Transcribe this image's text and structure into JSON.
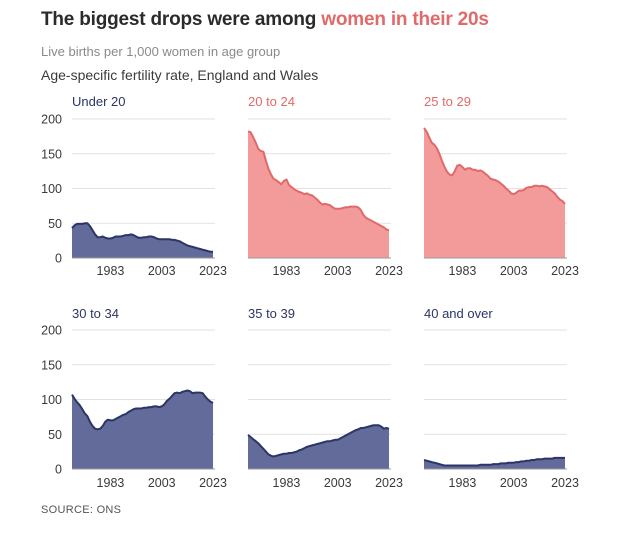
{
  "header": {
    "title_prefix": "The biggest drops were among ",
    "title_highlight": "women in their 20s",
    "subtitle": "Live births per 1,000 women in age group",
    "caption": "Age-specific fertility rate, England and Wales"
  },
  "source": "SOURCE: ONS",
  "colors": {
    "navy": "#2b3566",
    "navy_fill": "#626b99",
    "red": "#e06a6a",
    "red_fill": "#f39a9a",
    "grid": "#e2e2e2",
    "axis_text": "#3a3a3a"
  },
  "chart_data": {
    "type": "area",
    "layout": "small-multiples",
    "x_range": [
      1968,
      2023
    ],
    "x_ticks": [
      1983,
      2003,
      2023
    ],
    "x_tick_labels": [
      "1983",
      "2003",
      "2023"
    ],
    "ylim": [
      0,
      200
    ],
    "y_ticks": [
      0,
      50,
      100,
      150,
      200
    ],
    "y_tick_labels": [
      "0",
      "50",
      "100",
      "150",
      "200"
    ],
    "grid": true,
    "panels": [
      {
        "name": "Under 20",
        "color": "navy",
        "x": [
          1968,
          1969,
          1970,
          1971,
          1972,
          1973,
          1974,
          1975,
          1976,
          1977,
          1978,
          1979,
          1980,
          1981,
          1982,
          1983,
          1984,
          1985,
          1986,
          1987,
          1988,
          1989,
          1990,
          1991,
          1992,
          1993,
          1994,
          1995,
          1996,
          1997,
          1998,
          1999,
          2000,
          2001,
          2002,
          2003,
          2004,
          2005,
          2006,
          2007,
          2008,
          2009,
          2010,
          2011,
          2012,
          2013,
          2014,
          2015,
          2016,
          2017,
          2018,
          2019,
          2020,
          2021,
          2022,
          2023
        ],
        "values": [
          43,
          47,
          49,
          49,
          49,
          50,
          50,
          46,
          40,
          34,
          30,
          30,
          31,
          29,
          28,
          28,
          29,
          31,
          31,
          31,
          32,
          33,
          33,
          34,
          33,
          31,
          29,
          29,
          30,
          30,
          31,
          31,
          30,
          28,
          27,
          27,
          27,
          27,
          27,
          26,
          26,
          25,
          24,
          22,
          20,
          18,
          17,
          16,
          15,
          14,
          13,
          12,
          11,
          10,
          9,
          9
        ]
      },
      {
        "name": "20 to 24",
        "color": "red",
        "x": [
          1968,
          1969,
          1970,
          1971,
          1972,
          1973,
          1974,
          1975,
          1976,
          1977,
          1978,
          1979,
          1980,
          1981,
          1982,
          1983,
          1984,
          1985,
          1986,
          1987,
          1988,
          1989,
          1990,
          1991,
          1992,
          1993,
          1994,
          1995,
          1996,
          1997,
          1998,
          1999,
          2000,
          2001,
          2002,
          2003,
          2004,
          2005,
          2006,
          2007,
          2008,
          2009,
          2010,
          2011,
          2012,
          2013,
          2014,
          2015,
          2016,
          2017,
          2018,
          2019,
          2020,
          2021,
          2022,
          2023
        ],
        "values": [
          182,
          181,
          174,
          166,
          157,
          154,
          153,
          140,
          128,
          120,
          114,
          112,
          109,
          106,
          111,
          113,
          105,
          102,
          99,
          97,
          95,
          94,
          92,
          93,
          91,
          90,
          87,
          84,
          80,
          77,
          78,
          77,
          76,
          73,
          71,
          71,
          71,
          72,
          73,
          73,
          74,
          74,
          74,
          73,
          69,
          62,
          58,
          56,
          54,
          52,
          50,
          48,
          46,
          44,
          41,
          40
        ]
      },
      {
        "name": "25 to 29",
        "color": "red",
        "x": [
          1968,
          1969,
          1970,
          1971,
          1972,
          1973,
          1974,
          1975,
          1976,
          1977,
          1978,
          1979,
          1980,
          1981,
          1982,
          1983,
          1984,
          1985,
          1986,
          1987,
          1988,
          1989,
          1990,
          1991,
          1992,
          1993,
          1994,
          1995,
          1996,
          1997,
          1998,
          1999,
          2000,
          2001,
          2002,
          2003,
          2004,
          2005,
          2006,
          2007,
          2008,
          2009,
          2010,
          2011,
          2012,
          2013,
          2014,
          2015,
          2016,
          2017,
          2018,
          2019,
          2020,
          2021,
          2022,
          2023
        ],
        "values": [
          187,
          182,
          174,
          166,
          163,
          158,
          150,
          140,
          131,
          124,
          120,
          119,
          125,
          133,
          134,
          131,
          127,
          129,
          129,
          127,
          127,
          125,
          126,
          124,
          121,
          118,
          114,
          113,
          112,
          110,
          107,
          104,
          100,
          97,
          93,
          92,
          94,
          97,
          97,
          98,
          101,
          102,
          102,
          104,
          104,
          103,
          104,
          103,
          102,
          99,
          96,
          93,
          88,
          84,
          82,
          78
        ]
      },
      {
        "name": "30 to 34",
        "color": "navy",
        "x": [
          1968,
          1969,
          1970,
          1971,
          1972,
          1973,
          1974,
          1975,
          1976,
          1977,
          1978,
          1979,
          1980,
          1981,
          1982,
          1983,
          1984,
          1985,
          1986,
          1987,
          1988,
          1989,
          1990,
          1991,
          1992,
          1993,
          1994,
          1995,
          1996,
          1997,
          1998,
          1999,
          2000,
          2001,
          2002,
          2003,
          2004,
          2005,
          2006,
          2007,
          2008,
          2009,
          2010,
          2011,
          2012,
          2013,
          2014,
          2015,
          2016,
          2017,
          2018,
          2019,
          2020,
          2021,
          2022,
          2023
        ],
        "values": [
          107,
          101,
          96,
          92,
          86,
          80,
          76,
          68,
          62,
          58,
          57,
          58,
          62,
          68,
          71,
          70,
          70,
          72,
          74,
          76,
          78,
          79,
          82,
          84,
          86,
          87,
          87,
          87,
          88,
          88,
          89,
          89,
          90,
          90,
          89,
          90,
          93,
          98,
          101,
          105,
          109,
          110,
          109,
          111,
          112,
          113,
          112,
          109,
          110,
          110,
          110,
          109,
          104,
          100,
          97,
          95
        ]
      },
      {
        "name": "35 to 39",
        "color": "navy",
        "x": [
          1968,
          1969,
          1970,
          1971,
          1972,
          1973,
          1974,
          1975,
          1976,
          1977,
          1978,
          1979,
          1980,
          1981,
          1982,
          1983,
          1984,
          1985,
          1986,
          1987,
          1988,
          1989,
          1990,
          1991,
          1992,
          1993,
          1994,
          1995,
          1996,
          1997,
          1998,
          1999,
          2000,
          2001,
          2002,
          2003,
          2004,
          2005,
          2006,
          2007,
          2008,
          2009,
          2010,
          2011,
          2012,
          2013,
          2014,
          2015,
          2016,
          2017,
          2018,
          2019,
          2020,
          2021,
          2022,
          2023
        ],
        "values": [
          49,
          46,
          43,
          40,
          37,
          33,
          29,
          25,
          21,
          19,
          18,
          19,
          20,
          21,
          22,
          22,
          23,
          23,
          24,
          25,
          27,
          28,
          30,
          32,
          33,
          34,
          35,
          36,
          37,
          38,
          39,
          40,
          40,
          41,
          42,
          42,
          44,
          46,
          48,
          50,
          52,
          54,
          56,
          57,
          59,
          59,
          60,
          61,
          62,
          63,
          63,
          63,
          61,
          58,
          59,
          58
        ]
      },
      {
        "name": "40 and over",
        "color": "navy",
        "x": [
          1968,
          1969,
          1970,
          1971,
          1972,
          1973,
          1974,
          1975,
          1976,
          1977,
          1978,
          1979,
          1980,
          1981,
          1982,
          1983,
          1984,
          1985,
          1986,
          1987,
          1988,
          1989,
          1990,
          1991,
          1992,
          1993,
          1994,
          1995,
          1996,
          1997,
          1998,
          1999,
          2000,
          2001,
          2002,
          2003,
          2004,
          2005,
          2006,
          2007,
          2008,
          2009,
          2010,
          2011,
          2012,
          2013,
          2014,
          2015,
          2016,
          2017,
          2018,
          2019,
          2020,
          2021,
          2022,
          2023
        ],
        "values": [
          13,
          12,
          11,
          10,
          9,
          8,
          7,
          6,
          5,
          5,
          5,
          5,
          5,
          5,
          5,
          5,
          5,
          5,
          5,
          5,
          5,
          5,
          6,
          6,
          6,
          6,
          6,
          7,
          7,
          7,
          8,
          8,
          8,
          9,
          9,
          9,
          10,
          10,
          11,
          11,
          12,
          12,
          13,
          13,
          14,
          14,
          14,
          15,
          15,
          15,
          15,
          16,
          16,
          16,
          16,
          16
        ]
      }
    ]
  }
}
